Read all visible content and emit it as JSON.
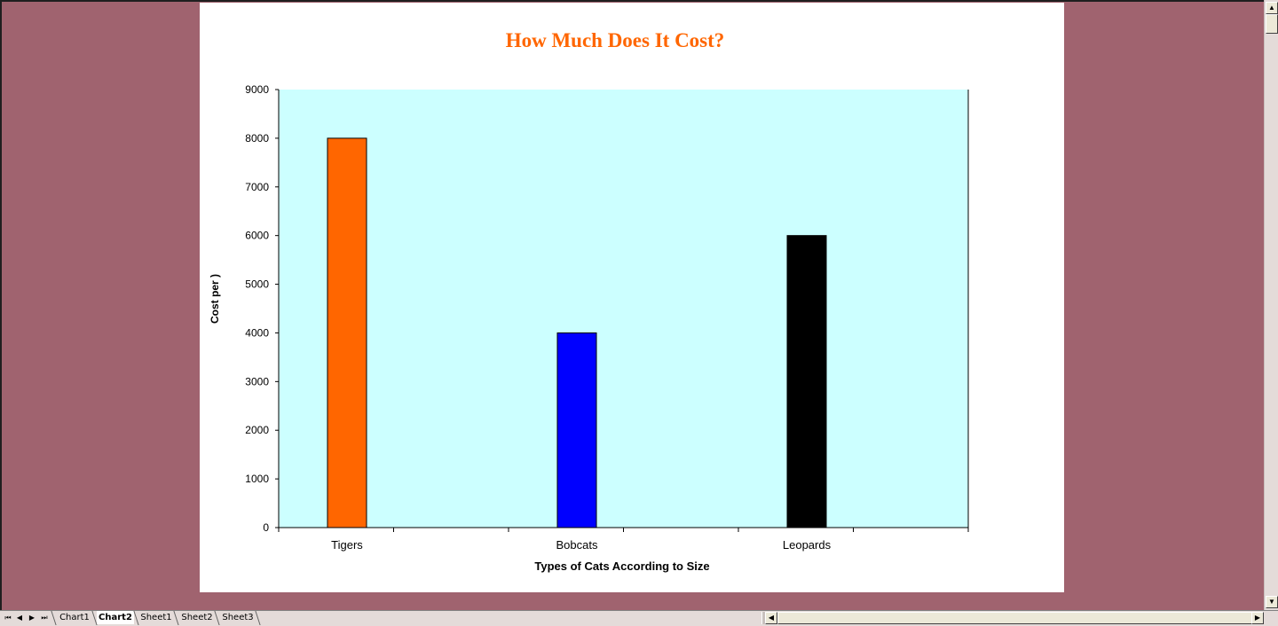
{
  "chart_data": {
    "type": "bar",
    "title": "How Much Does It Cost?",
    "xlabel": "Types of Cats According to Size",
    "ylabel": "Cost per )",
    "categories": [
      "Tigers",
      "Bobcats",
      "Leopards"
    ],
    "values": [
      8000,
      4000,
      6000
    ],
    "bar_colors": [
      "#ff6600",
      "#0000ff",
      "#000000"
    ],
    "ylim": [
      0,
      9000
    ],
    "yticks": [
      0,
      1000,
      2000,
      3000,
      4000,
      5000,
      6000,
      7000,
      8000,
      9000
    ],
    "plot_background": "#ccffff",
    "title_color": "#ff6600",
    "grid": false,
    "legend": "none"
  },
  "sheet_tabs": [
    "Chart1",
    "Chart2",
    "Sheet1",
    "Sheet2",
    "Sheet3"
  ],
  "active_tab": "Chart2",
  "colors": {
    "workspace": "#a0636f"
  }
}
